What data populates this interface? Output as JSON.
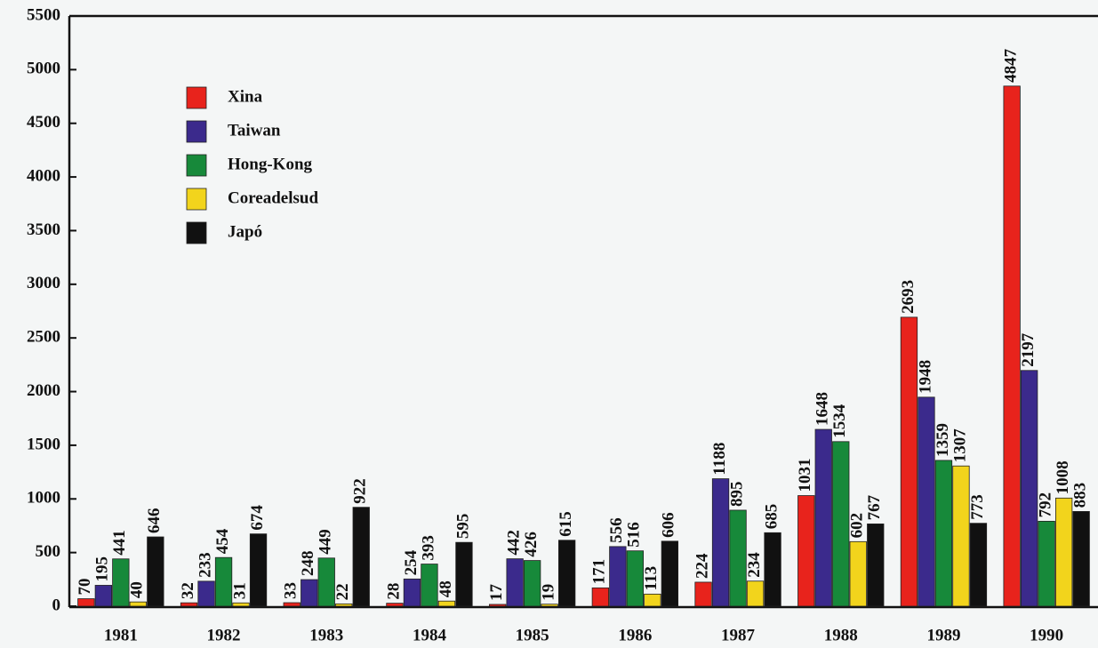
{
  "chart_data": {
    "type": "bar",
    "categories": [
      "1981",
      "1982",
      "1983",
      "1984",
      "1985",
      "1986",
      "1987",
      "1988",
      "1989",
      "1990"
    ],
    "series": [
      {
        "name": "Xina",
        "color": "#e8231c",
        "values": [
          70,
          32,
          33,
          28,
          17,
          171,
          224,
          1031,
          2693,
          4847
        ]
      },
      {
        "name": "Taiwan",
        "color": "#3b2a8c",
        "values": [
          195,
          233,
          248,
          254,
          442,
          556,
          1188,
          1648,
          1948,
          2197
        ]
      },
      {
        "name": "Hong-Kong",
        "color": "#17893a",
        "values": [
          441,
          454,
          449,
          393,
          426,
          516,
          895,
          1534,
          1359,
          792
        ]
      },
      {
        "name": "Coreadelsud",
        "color": "#f2d41c",
        "values": [
          40,
          31,
          22,
          48,
          19,
          113,
          234,
          602,
          1307,
          1008
        ]
      },
      {
        "name": "Japó",
        "color": "#111111",
        "values": [
          646,
          674,
          922,
          595,
          615,
          606,
          685,
          767,
          773,
          883
        ]
      }
    ],
    "ylim": [
      0,
      5500
    ],
    "yticks": [
      0,
      500,
      1000,
      1500,
      2000,
      2500,
      3000,
      3500,
      4000,
      4500,
      5000,
      5500
    ],
    "legend": "upper left"
  }
}
